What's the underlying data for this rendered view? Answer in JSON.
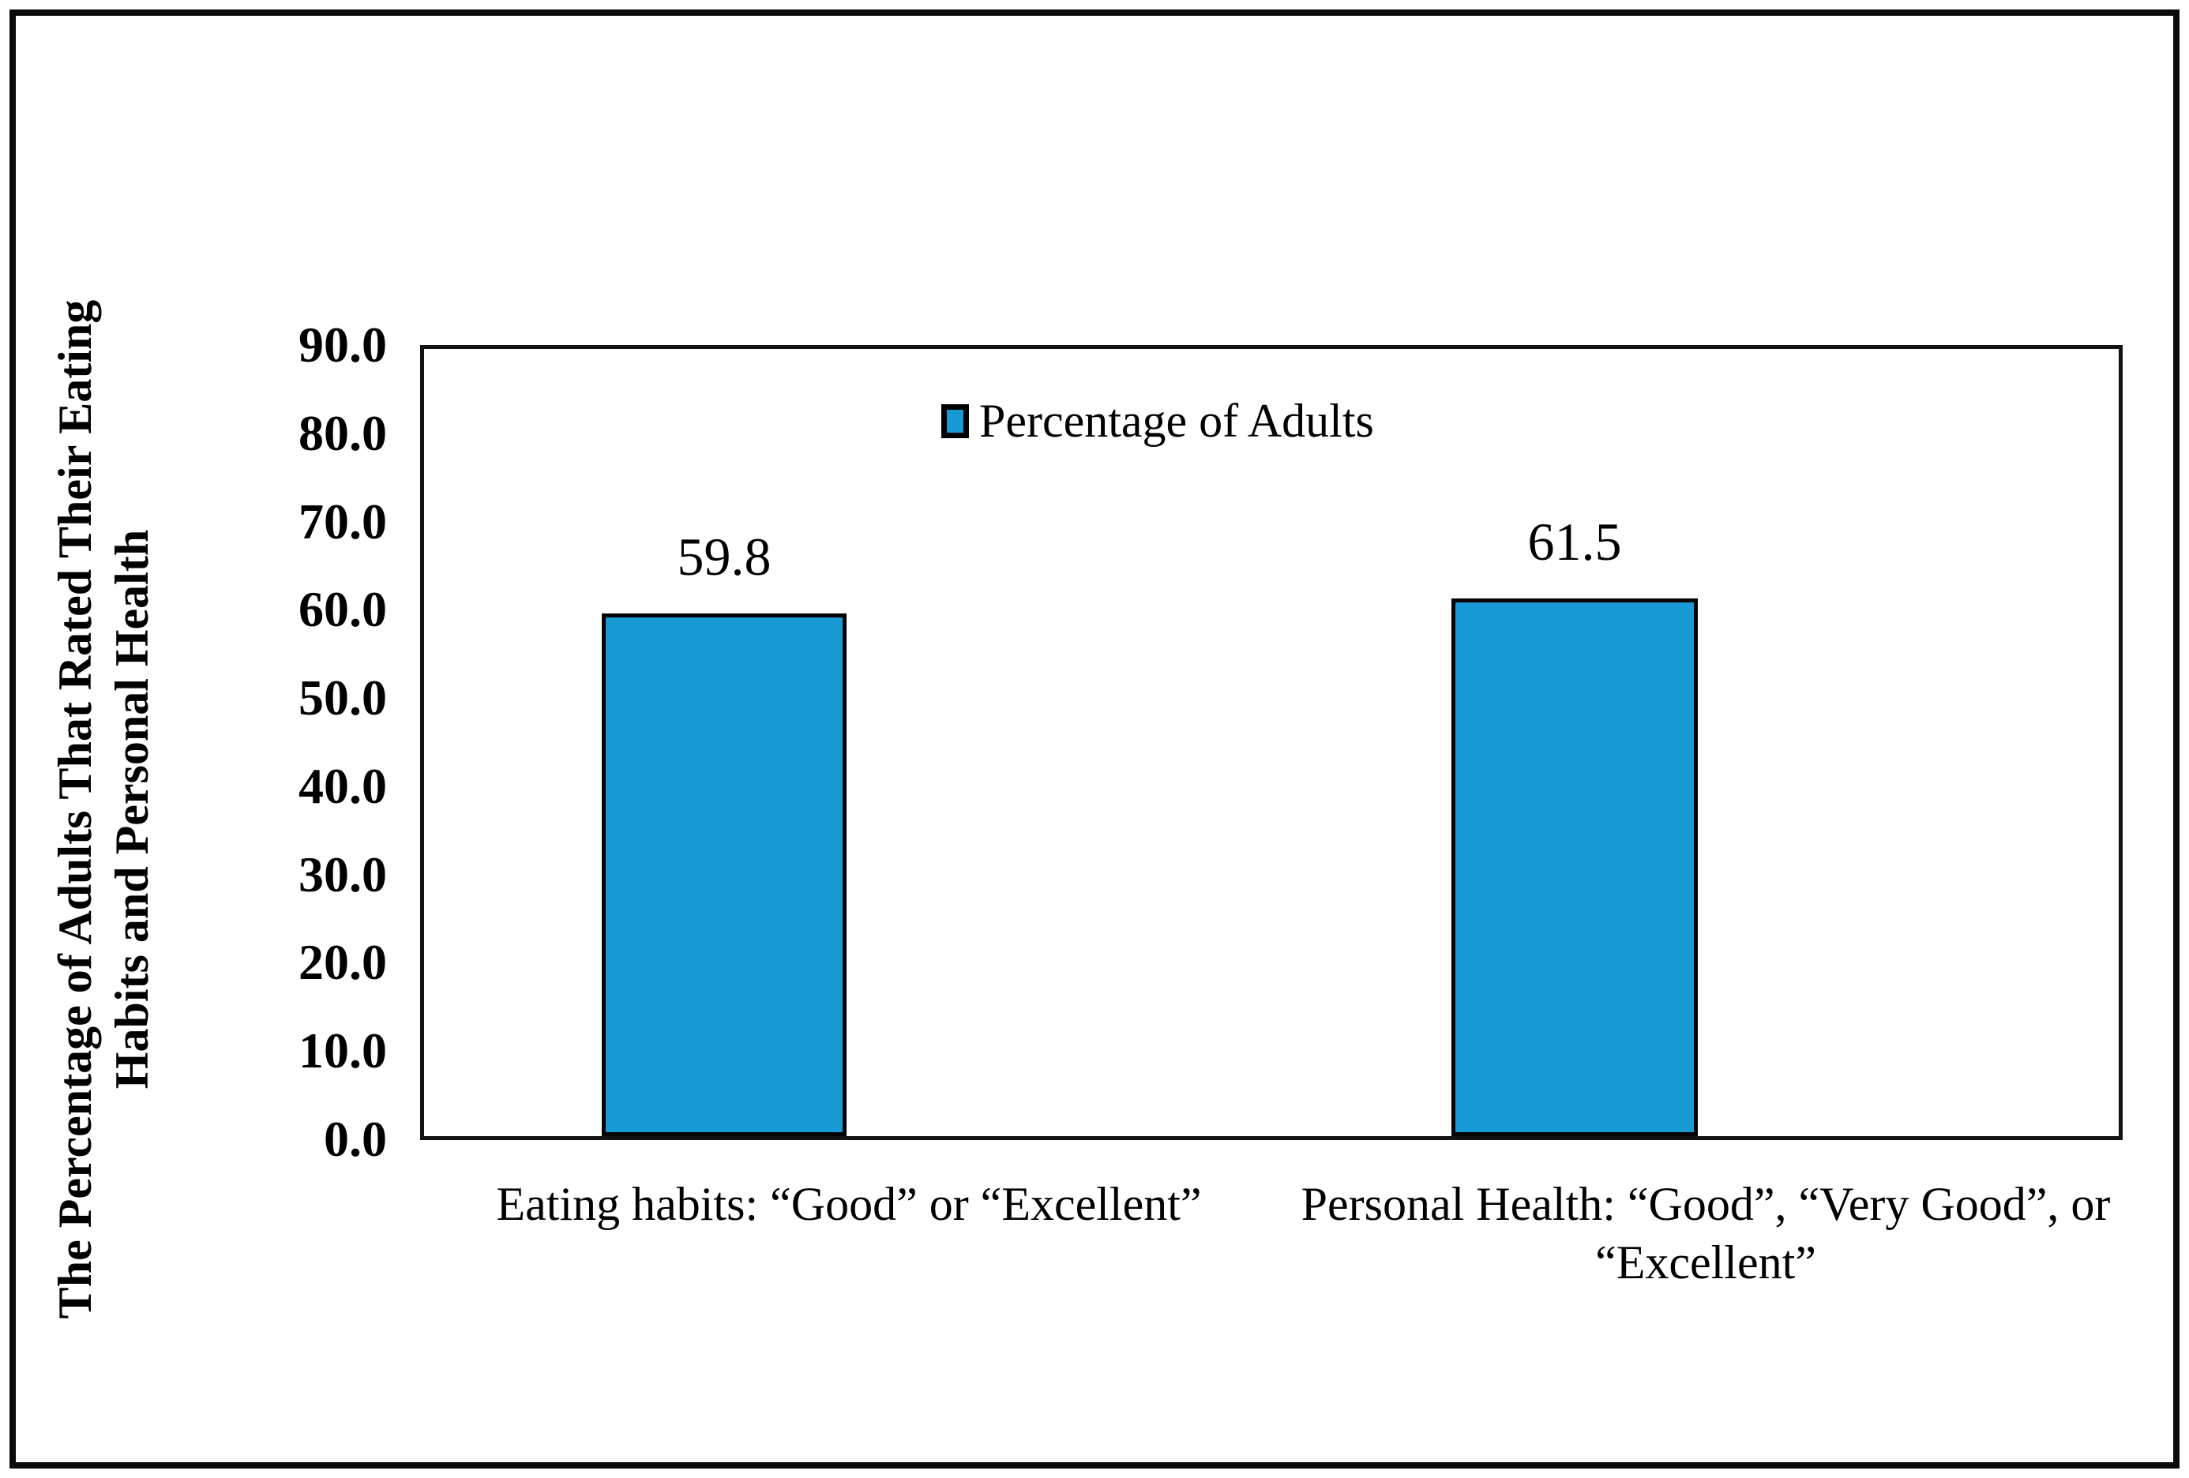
{
  "chart_data": {
    "type": "bar",
    "title": "",
    "legend": [
      "Percentage of Adults"
    ],
    "legend_position": "top-center-inside",
    "categories": [
      "Eating habits: “Good” or “Excellent”",
      "Personal Health: “Good”, “Very Good”, or “Excellent”"
    ],
    "values": [
      59.8,
      61.5
    ],
    "value_labels": [
      "59.8",
      "61.5"
    ],
    "xlabel": "",
    "ylabel": "The Percentage of Adults That Rated Their Eating Habits and Personal Health",
    "ylabel_line1": "The Percentage of Adults That Rated Their Eating",
    "ylabel_line2": "Habits and Personal Health",
    "ylim": [
      0,
      90
    ],
    "ytick_step": 10,
    "yticks": [
      "90.0",
      "80.0",
      "70.0",
      "60.0",
      "50.0",
      "40.0",
      "30.0",
      "20.0",
      "10.0",
      "0.0"
    ],
    "grid": false,
    "bar_color": "#1899d4",
    "bar_border_color": "#000000",
    "frame_color": "#121212",
    "text_color": "#000000"
  }
}
